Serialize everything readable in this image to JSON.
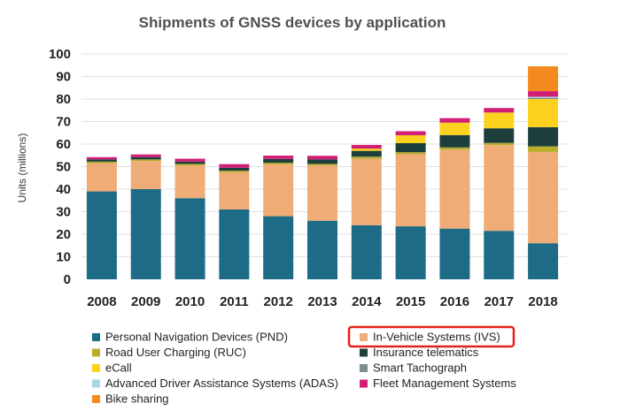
{
  "chart_data": {
    "type": "bar",
    "stacked": true,
    "title": "Shipments of GNSS devices by application",
    "ylabel": "Units (millions)",
    "xlabel": "",
    "ylim": [
      0,
      100
    ],
    "yticks": [
      0,
      10,
      20,
      30,
      40,
      50,
      60,
      70,
      80,
      90,
      100
    ],
    "grid": true,
    "legend_position": "bottom",
    "categories": [
      "2008",
      "2009",
      "2010",
      "2011",
      "2012",
      "2013",
      "2014",
      "2015",
      "2016",
      "2017",
      "2018"
    ],
    "series": [
      {
        "name": "Personal Navigation Devices (PND)",
        "color": "#1d6b86",
        "values": [
          39,
          40,
          36,
          31,
          28,
          26,
          24,
          23.5,
          22.5,
          21.5,
          16
        ]
      },
      {
        "name": "In-Vehicle Systems (IVS)",
        "color": "#efac77",
        "values": [
          12.5,
          12.5,
          14.5,
          16.5,
          23,
          24.5,
          29.5,
          32,
          35,
          38,
          40.5
        ]
      },
      {
        "name": "Road User Charging (RUC)",
        "color": "#b9ad2c",
        "values": [
          0.7,
          0.7,
          0.7,
          0.7,
          0.7,
          0.7,
          0.9,
          0.9,
          1,
          1,
          2.5
        ]
      },
      {
        "name": "Insurance telematics",
        "color": "#1d3f3c",
        "values": [
          1,
          1,
          1,
          1.3,
          1.7,
          2,
          2.6,
          4,
          5.5,
          6.5,
          8.5
        ]
      },
      {
        "name": "eCall",
        "color": "#fdd21e",
        "values": [
          0,
          0,
          0,
          0,
          0,
          0,
          1,
          3.5,
          5.5,
          7,
          12.5
        ]
      },
      {
        "name": "Smart Tachograph",
        "color": "#7f8a91",
        "values": [
          0,
          0,
          0,
          0,
          0,
          0,
          0,
          0,
          0,
          0,
          0.5
        ]
      },
      {
        "name": "Advanced Driver Assistance Systems (ADAS)",
        "color": "#a7d8df",
        "values": [
          0,
          0,
          0,
          0,
          0,
          0,
          0,
          0,
          0,
          0,
          0.5
        ]
      },
      {
        "name": "Fleet Management Systems",
        "color": "#d11f76",
        "values": [
          1,
          1.2,
          1.3,
          1.6,
          1.5,
          1.6,
          1.6,
          1.8,
          2,
          2,
          2.5
        ]
      },
      {
        "name": "Bike sharing",
        "color": "#f28a1e",
        "values": [
          0,
          0,
          0,
          0,
          0,
          0,
          0,
          0,
          0,
          0,
          11
        ]
      }
    ],
    "highlighted_legend_entry": "In-Vehicle Systems (IVS)",
    "highlight_color": "#e2231a"
  }
}
